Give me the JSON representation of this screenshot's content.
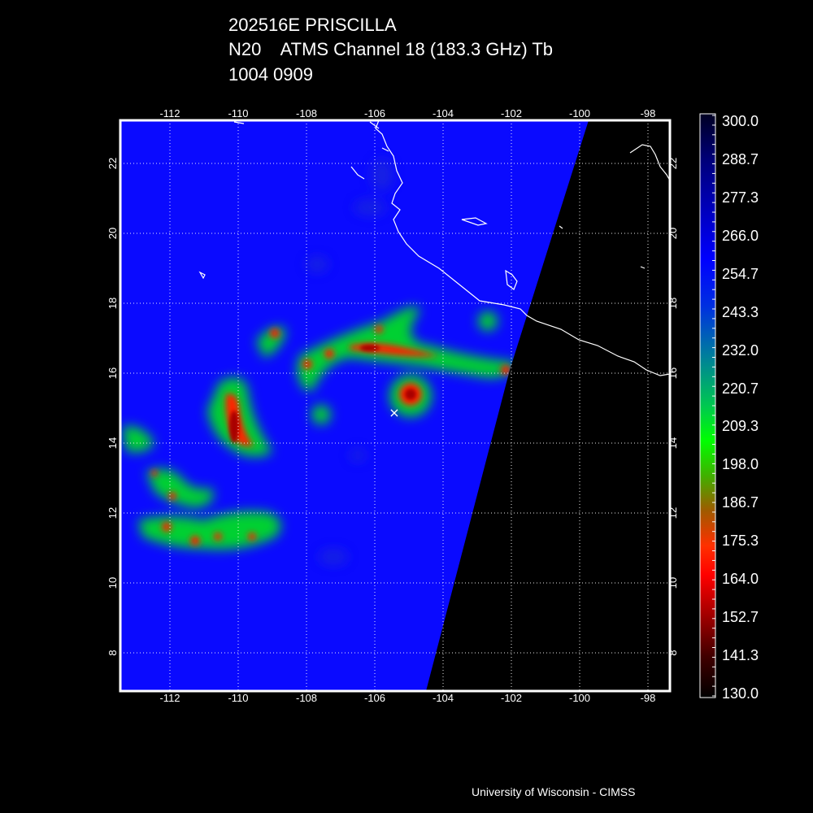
{
  "title": {
    "line1": "202516E PRISCILLA",
    "line2": "N20    ATMS Channel 18 (183.3 GHz) Tb",
    "line3": "1004 0909"
  },
  "map": {
    "lon_ticks": [
      "-112",
      "-110",
      "-108",
      "-106",
      "-104",
      "-102",
      "-100",
      "-98"
    ],
    "lat_ticks": [
      "22",
      "20",
      "18",
      "16",
      "14",
      "12",
      "10",
      "8"
    ],
    "lon_range": [
      -113.4,
      -97.4
    ],
    "lat_range": [
      7.0,
      23.3
    ],
    "storm_center_marker": {
      "lon": -105.4,
      "lat": 14.9,
      "symbol": "×"
    },
    "grid": "dotted",
    "no_data_region": "east of swath edge (black)"
  },
  "colorbar": {
    "labels": [
      "300.0",
      "288.7",
      "277.3",
      "266.0",
      "254.7",
      "243.3",
      "232.0",
      "220.7",
      "209.3",
      "198.0",
      "186.7",
      "175.3",
      "164.0",
      "152.7",
      "141.3",
      "130.0"
    ],
    "stops": [
      "#000033",
      "#00008b",
      "#0000ff",
      "#0050c8",
      "#008c96",
      "#00c84b",
      "#00ff00",
      "#64a000",
      "#b44600",
      "#ff2800",
      "#ff0000",
      "#a00000",
      "#500000",
      "#000000"
    ]
  },
  "credit": "University of Wisconsin - CIMSS"
}
